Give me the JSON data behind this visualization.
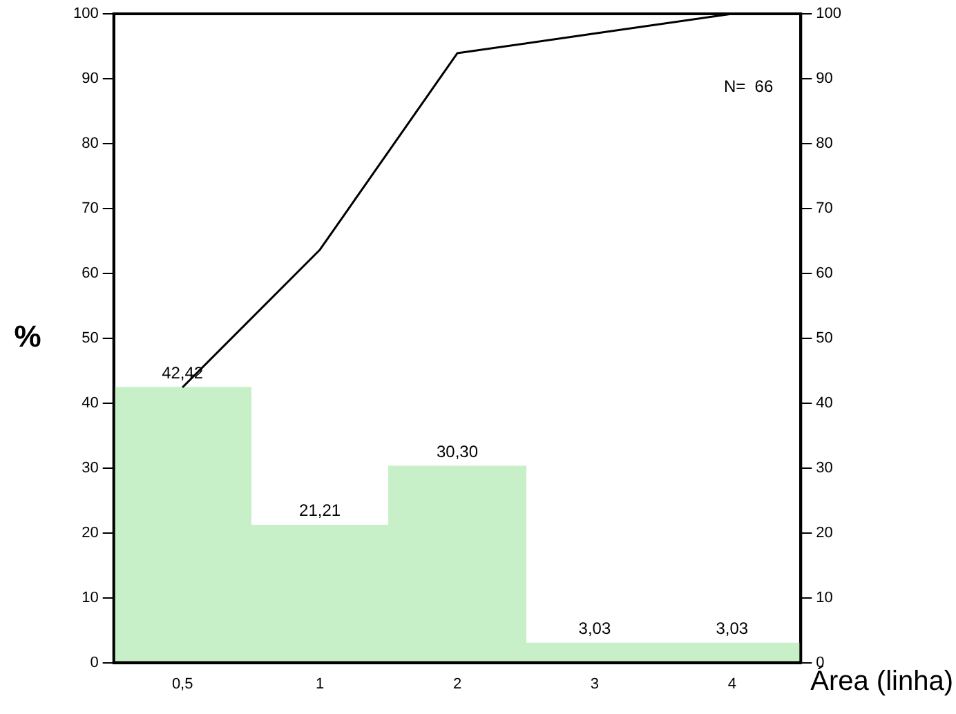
{
  "chart_data": {
    "type": "bar",
    "xlabel": "Área (linha)",
    "ylabel": "%",
    "categories": [
      "0,5",
      "1",
      "2",
      "3",
      "4"
    ],
    "series": [
      {
        "color": "#c8f0c8",
        "values": [
          42.42,
          21.21,
          30.3,
          3.03,
          3.03
        ],
        "value_labels": [
          "42,42",
          "21,21",
          "30,30",
          "3,03",
          "3,03"
        ]
      },
      {
        "type": "line",
        "color": "#000000",
        "values": [
          42.42,
          63.63,
          93.93,
          96.96,
          100
        ]
      }
    ],
    "ylim": [
      0,
      100
    ],
    "yticks": [
      0,
      10,
      20,
      30,
      40,
      50,
      60,
      70,
      80,
      90,
      100
    ],
    "y2lim": [
      0,
      100
    ],
    "y2ticks": [
      0,
      10,
      20,
      30,
      40,
      50,
      60,
      70,
      80,
      90,
      100
    ],
    "annotations": [
      "N=  66"
    ],
    "grid": false,
    "legend": false,
    "marker": "none"
  }
}
